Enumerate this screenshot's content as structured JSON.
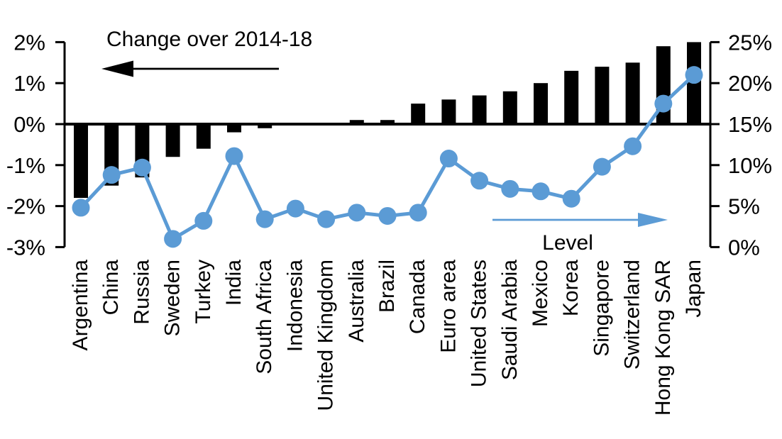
{
  "chart_data": {
    "type": "combo",
    "title": "Change over 2014-18",
    "categories": [
      "Argentina",
      "China",
      "Russia",
      "Sweden",
      "Turkey",
      "India",
      "South Africa",
      "Indonesia",
      "United Kingdom",
      "Australia",
      "Brazil",
      "Canada",
      "Euro area",
      "United States",
      "Saudi Arabia",
      "Mexico",
      "Korea",
      "Singapore",
      "Switzerland",
      "Hong Kong SAR",
      "Japan"
    ],
    "series": [
      {
        "name": "Change over 2014-18",
        "type": "bar",
        "axis": "left",
        "unit": "%",
        "values": [
          -1.8,
          -1.5,
          -1.3,
          -0.8,
          -0.6,
          -0.2,
          -0.1,
          0.0,
          0.0,
          0.1,
          0.1,
          0.5,
          0.6,
          0.7,
          0.8,
          1.0,
          1.3,
          1.4,
          1.5,
          1.9,
          2.0
        ]
      },
      {
        "name": "Level",
        "type": "line",
        "axis": "right",
        "unit": "%",
        "values": [
          4.8,
          8.8,
          9.7,
          1.0,
          3.2,
          11.1,
          3.4,
          4.7,
          3.4,
          4.2,
          3.8,
          4.2,
          10.8,
          8.1,
          7.1,
          6.8,
          5.9,
          9.8,
          12.3,
          17.5,
          21.0
        ]
      }
    ],
    "left_axis": {
      "range": [
        -3,
        2
      ],
      "tick_values": [
        2,
        1,
        0,
        -1,
        -2,
        -3
      ],
      "tick_labels": [
        "2%",
        "1%",
        "0%",
        "-1%",
        "-2%",
        "-3%"
      ]
    },
    "right_axis": {
      "range": [
        0,
        25
      ],
      "tick_values": [
        25,
        20,
        15,
        10,
        5,
        0
      ],
      "tick_labels": [
        "25%",
        "20%",
        "15%",
        "10%",
        "5%",
        "0%"
      ]
    },
    "annotations": {
      "bar_series_label": "Change over 2014-18",
      "line_series_label": "Level",
      "left_arrow": "points left toward left axis",
      "right_arrow": "points right toward right axis"
    },
    "grid": false,
    "legend_position": "in-plot arrows",
    "colors": {
      "bar": "#000000",
      "line": "#5B9BD5",
      "text": "#000000",
      "background": "#FFFFFF"
    }
  }
}
